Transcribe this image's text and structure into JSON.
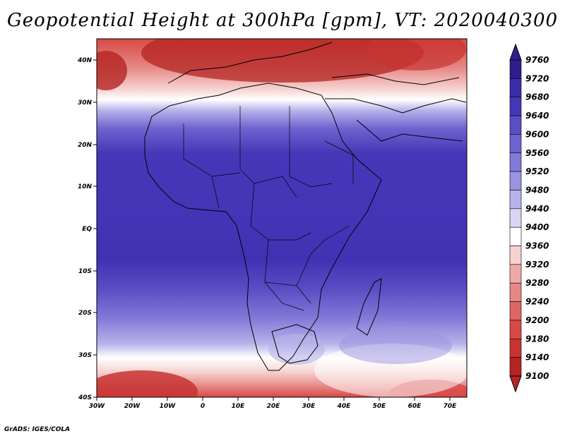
{
  "title": "Geopotential Height at 300hPa [gpm], VT: 2020040300",
  "credit": "GrADS: IGES/COLA",
  "map": {
    "lon_labels": [
      "30W",
      "20W",
      "10W",
      "0",
      "10E",
      "20E",
      "30E",
      "40E",
      "50E",
      "60E",
      "70E"
    ],
    "lat_labels": [
      "40N",
      "30N",
      "20N",
      "10N",
      "EQ",
      "10S",
      "20S",
      "30S",
      "40S"
    ]
  },
  "colorbar": {
    "levels": [
      "9760",
      "9720",
      "9680",
      "9640",
      "9600",
      "9560",
      "9520",
      "9480",
      "9440",
      "9400",
      "9360",
      "9320",
      "9280",
      "9240",
      "9200",
      "9180",
      "9140",
      "9100"
    ],
    "colors": [
      "#2d1e8c",
      "#3a2ea8",
      "#4637b8",
      "#5a4ec4",
      "#6e63cf",
      "#8379d8",
      "#9b93e0",
      "#b7b2ea",
      "#d8d6f4",
      "#ffffff",
      "#f6d2d0",
      "#eeaaa8",
      "#e58885",
      "#dd6664",
      "#d84946",
      "#c73432",
      "#b42422"
    ]
  },
  "chart_data": {
    "type": "heatmap",
    "title": "Geopotential Height at 300hPa [gpm], VT: 2020040300",
    "variable": "Geopotential Height",
    "level": "300hPa",
    "units": "gpm",
    "valid_time": "2020040300",
    "lon_range": [
      -30,
      75
    ],
    "lat_range": [
      -40,
      45
    ],
    "colorbar_values": [
      9100,
      9140,
      9180,
      9200,
      9240,
      9280,
      9320,
      9360,
      9400,
      9440,
      9480,
      9520,
      9560,
      9600,
      9640,
      9680,
      9720,
      9760
    ]
  }
}
